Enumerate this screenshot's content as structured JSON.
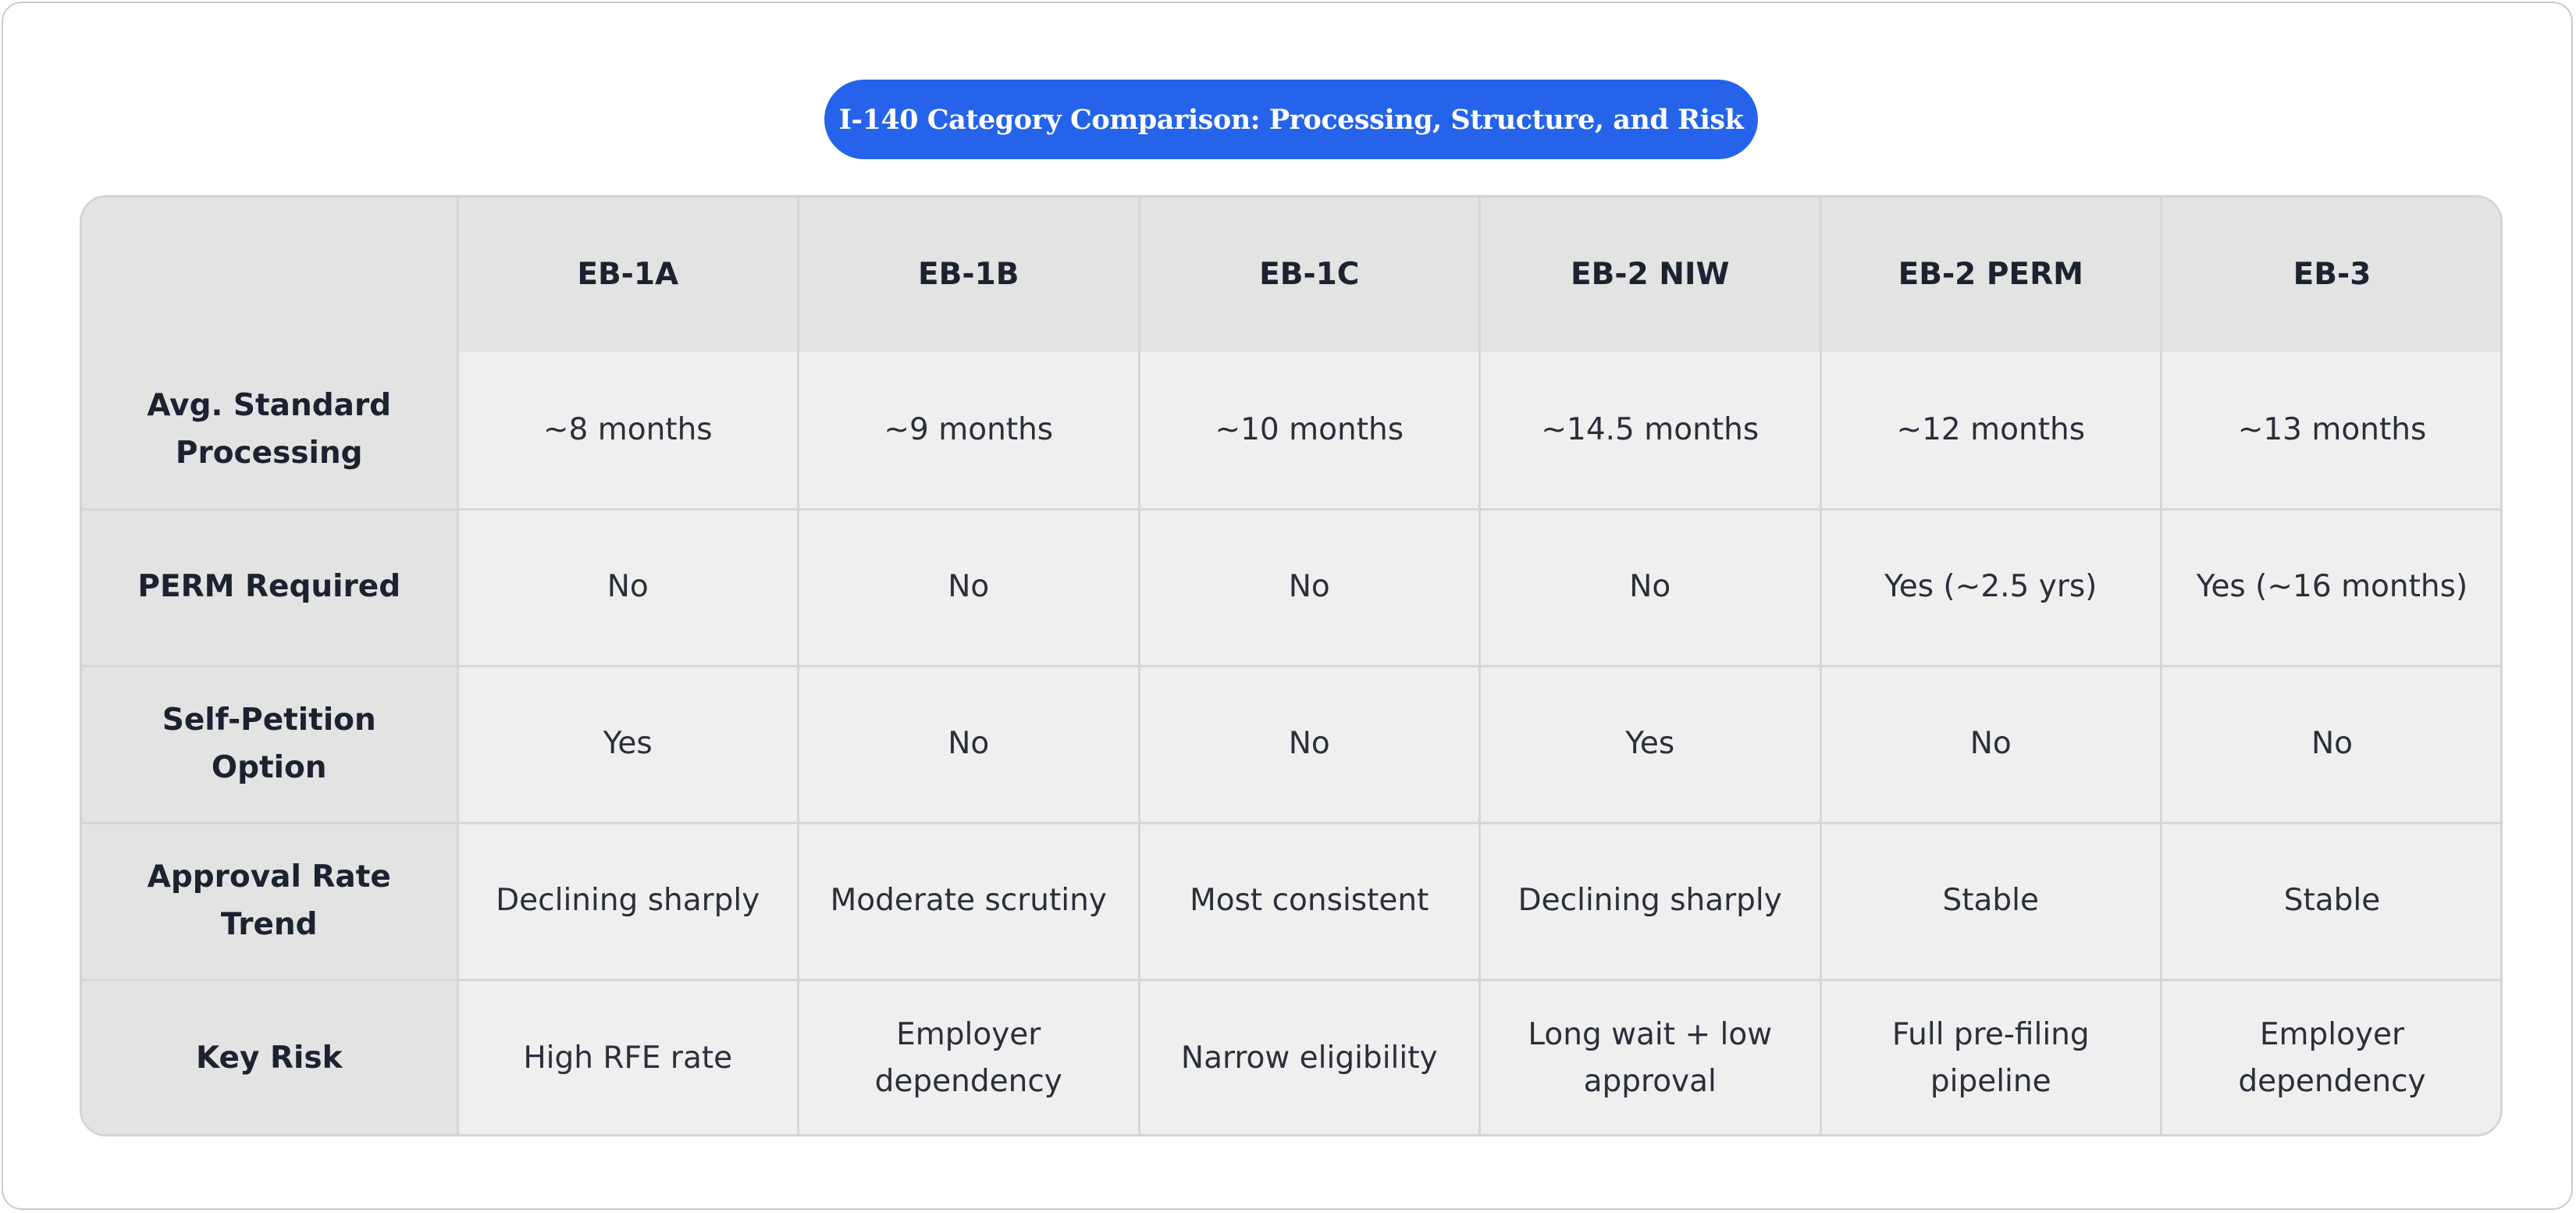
{
  "title": "I-140 Category Comparison: Processing, Structure, and Risk",
  "table": {
    "corner": "",
    "columns": [
      "EB-1A",
      "EB-1B",
      "EB-1C",
      "EB-2 NIW",
      "EB-2 PERM",
      "EB-3"
    ],
    "rows": [
      {
        "label": "Avg. Standard Processing",
        "cells": [
          "~8 months",
          "~9 months",
          "~10 months",
          "~14.5 months",
          "~12 months",
          "~13 months"
        ]
      },
      {
        "label": "PERM Required",
        "cells": [
          "No",
          "No",
          "No",
          "No",
          "Yes (~2.5 yrs)",
          "Yes (~16 months)"
        ]
      },
      {
        "label": "Self-Petition Option",
        "cells": [
          "Yes",
          "No",
          "No",
          "Yes",
          "No",
          "No"
        ]
      },
      {
        "label": "Approval Rate Trend",
        "cells": [
          "Declining sharply",
          "Moderate scrutiny",
          "Most consistent",
          "Declining sharply",
          "Stable",
          "Stable"
        ]
      },
      {
        "label": "Key Risk",
        "cells": [
          "High RFE rate",
          "Employer dependency",
          "Narrow eligibility",
          "Long wait + low approval",
          "Full pre-filing pipeline",
          "Employer dependency"
        ]
      }
    ]
  },
  "colors": {
    "title_background": "#2563eb",
    "title_text": "#ffffff",
    "header_background": "#e3e3e3",
    "cell_background": "#efefef",
    "border": "#d6d6d6"
  }
}
